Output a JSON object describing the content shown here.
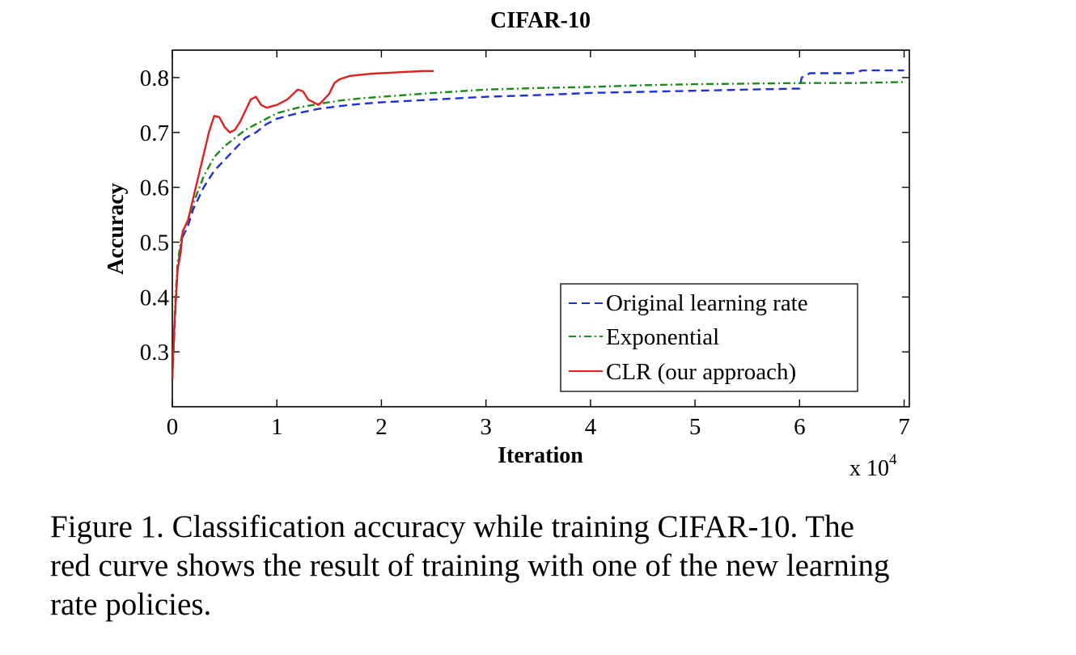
{
  "chart_data": {
    "type": "line",
    "title": "CIFAR-10",
    "xlabel": "Iteration",
    "ylabel": "Accuracy",
    "x_multiplier_label": "x 10",
    "x_multiplier_exp": "4",
    "xlim": [
      0,
      7.05
    ],
    "ylim": [
      0.2,
      0.85
    ],
    "x_unit": "10^4 iterations",
    "xticks": [
      0,
      1,
      2,
      3,
      4,
      5,
      6,
      7
    ],
    "xtick_labels": [
      "0",
      "1",
      "2",
      "3",
      "4",
      "5",
      "6",
      "7"
    ],
    "yticks": [
      0.3,
      0.4,
      0.5,
      0.6,
      0.7,
      0.8
    ],
    "ytick_labels": [
      "0.3",
      "0.4",
      "0.5",
      "0.6",
      "0.7",
      "0.8"
    ],
    "grid": false,
    "legend_position": "bottom-right",
    "series": [
      {
        "name": "Original learning rate",
        "color": "#1f2fd6",
        "dash": "10,6",
        "x": [
          0,
          0.03,
          0.05,
          0.08,
          0.1,
          0.15,
          0.2,
          0.3,
          0.4,
          0.5,
          0.6,
          0.7,
          0.8,
          0.9,
          1.0,
          1.2,
          1.4,
          1.6,
          1.8,
          2.0,
          2.5,
          3.0,
          3.5,
          4.0,
          4.5,
          5.0,
          5.5,
          6.0,
          6.02,
          6.1,
          6.5,
          6.6,
          7.0
        ],
        "y": [
          0.25,
          0.38,
          0.45,
          0.49,
          0.51,
          0.53,
          0.56,
          0.6,
          0.63,
          0.65,
          0.67,
          0.69,
          0.7,
          0.715,
          0.725,
          0.735,
          0.743,
          0.748,
          0.752,
          0.755,
          0.76,
          0.765,
          0.768,
          0.772,
          0.774,
          0.776,
          0.778,
          0.78,
          0.8,
          0.808,
          0.808,
          0.813,
          0.813
        ]
      },
      {
        "name": "Exponential",
        "color": "#1a8a1a",
        "dash": "9,4,2,4",
        "x": [
          0,
          0.03,
          0.05,
          0.08,
          0.1,
          0.15,
          0.2,
          0.3,
          0.4,
          0.5,
          0.6,
          0.7,
          0.8,
          0.9,
          1.0,
          1.2,
          1.4,
          1.6,
          1.8,
          2.0,
          2.5,
          3.0,
          3.5,
          4.0,
          4.5,
          5.0,
          5.5,
          6.0,
          6.5,
          7.0
        ],
        "y": [
          0.25,
          0.4,
          0.46,
          0.5,
          0.52,
          0.54,
          0.57,
          0.62,
          0.655,
          0.675,
          0.69,
          0.705,
          0.715,
          0.725,
          0.735,
          0.745,
          0.752,
          0.758,
          0.762,
          0.765,
          0.772,
          0.778,
          0.781,
          0.783,
          0.786,
          0.788,
          0.789,
          0.79,
          0.79,
          0.792
        ]
      },
      {
        "name": "CLR (our approach)",
        "color": "#e02020",
        "dash": "",
        "x": [
          0,
          0.02,
          0.05,
          0.08,
          0.1,
          0.15,
          0.2,
          0.25,
          0.3,
          0.35,
          0.4,
          0.45,
          0.5,
          0.55,
          0.6,
          0.65,
          0.7,
          0.75,
          0.8,
          0.85,
          0.9,
          1.0,
          1.1,
          1.2,
          1.25,
          1.3,
          1.4,
          1.5,
          1.55,
          1.6,
          1.65,
          1.7,
          1.8,
          1.9,
          2.0,
          2.1,
          2.2,
          2.3,
          2.4,
          2.5
        ],
        "y": [
          0.25,
          0.35,
          0.45,
          0.48,
          0.52,
          0.54,
          0.58,
          0.62,
          0.66,
          0.7,
          0.73,
          0.728,
          0.71,
          0.7,
          0.705,
          0.72,
          0.74,
          0.76,
          0.765,
          0.75,
          0.745,
          0.75,
          0.76,
          0.778,
          0.775,
          0.76,
          0.75,
          0.77,
          0.79,
          0.797,
          0.8,
          0.803,
          0.805,
          0.807,
          0.808,
          0.809,
          0.81,
          0.811,
          0.812,
          0.812
        ]
      }
    ]
  },
  "caption": {
    "line1": "Figure 1. Classification accuracy while training CIFAR-10.  The",
    "line2": "red curve shows the result of training with one of the new learning",
    "line3": "rate policies."
  }
}
